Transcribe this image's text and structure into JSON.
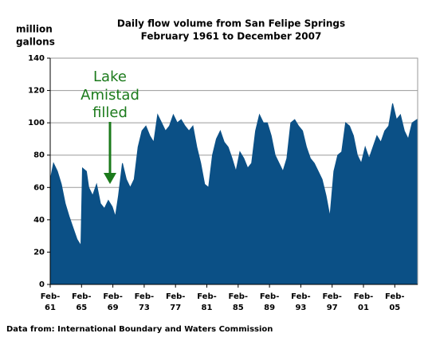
{
  "chart_data": {
    "type": "area",
    "title": "Daily flow volume from San Felipe Springs",
    "subtitle": "February 1961 to December 2007",
    "ylabel": [
      "million",
      "gallons"
    ],
    "annotation": [
      "Lake",
      "Amistad",
      "filled"
    ],
    "source": "Data from:  International Boundary and Waters Commission",
    "color": "#0b5086",
    "grid": true,
    "xlim": [
      1961.08,
      2008
    ],
    "ylim": [
      0,
      140
    ],
    "yticks": [
      0,
      20,
      40,
      60,
      80,
      100,
      120,
      140
    ],
    "xticks": [
      {
        "value": 1961.08,
        "label": "Feb-\n61"
      },
      {
        "value": 1965.08,
        "label": "Feb-\n65"
      },
      {
        "value": 1969.08,
        "label": "Feb-\n69"
      },
      {
        "value": 1973.08,
        "label": "Feb-\n73"
      },
      {
        "value": 1977.08,
        "label": "Feb-\n77"
      },
      {
        "value": 1981.08,
        "label": "Feb-\n81"
      },
      {
        "value": 1985.08,
        "label": "Feb-\n85"
      },
      {
        "value": 1989.08,
        "label": "Feb-\n89"
      },
      {
        "value": 1993.08,
        "label": "Feb-\n93"
      },
      {
        "value": 1997.08,
        "label": "Feb-\n97"
      },
      {
        "value": 2001.08,
        "label": "Feb-\n01"
      },
      {
        "value": 2005.08,
        "label": "Feb-\n05"
      }
    ],
    "x": [
      1961.1,
      1961.5,
      1962,
      1962.5,
      1963,
      1963.5,
      1964,
      1964.5,
      1965,
      1965.2,
      1965.7,
      1966,
      1966.5,
      1967,
      1967.5,
      1968,
      1968.5,
      1969,
      1969.4,
      1969.8,
      1970.3,
      1970.8,
      1971.3,
      1971.8,
      1972.3,
      1972.8,
      1973.3,
      1973.8,
      1974.3,
      1974.8,
      1975.3,
      1975.8,
      1976.3,
      1976.8,
      1977.3,
      1977.8,
      1978.3,
      1978.8,
      1979.3,
      1979.8,
      1980.3,
      1980.8,
      1981.3,
      1981.8,
      1982.3,
      1982.8,
      1983.3,
      1983.8,
      1984.3,
      1984.8,
      1985.3,
      1985.8,
      1986.3,
      1986.8,
      1987.3,
      1987.8,
      1988.3,
      1988.8,
      1989.3,
      1989.8,
      1990.3,
      1990.8,
      1991.3,
      1991.8,
      1992.3,
      1992.8,
      1993.3,
      1993.8,
      1994.3,
      1994.8,
      1995.3,
      1995.8,
      1996.3,
      1996.8,
      1997.3,
      1997.8,
      1998.3,
      1998.8,
      1999.3,
      1999.8,
      2000.3,
      2000.8,
      2001.3,
      2001.8,
      2002.3,
      2002.8,
      2003.3,
      2003.8,
      2004.3,
      2004.8,
      2005.3,
      2005.8,
      2006.3,
      2006.8,
      2007.3,
      2007.9
    ],
    "values": [
      65,
      75,
      70,
      62,
      50,
      42,
      35,
      28,
      24,
      72,
      70,
      60,
      55,
      62,
      50,
      47,
      52,
      48,
      42,
      55,
      75,
      65,
      60,
      65,
      85,
      95,
      98,
      92,
      88,
      105,
      100,
      95,
      98,
      105,
      100,
      102,
      98,
      95,
      98,
      85,
      75,
      62,
      60,
      80,
      90,
      95,
      88,
      85,
      78,
      70,
      82,
      78,
      72,
      75,
      95,
      105,
      100,
      100,
      92,
      80,
      75,
      70,
      78,
      100,
      102,
      98,
      95,
      85,
      78,
      75,
      70,
      65,
      55,
      42,
      70,
      80,
      82,
      100,
      98,
      92,
      80,
      75,
      85,
      78,
      85,
      92,
      88,
      95,
      98,
      112,
      102,
      105,
      95,
      90,
      100,
      102
    ]
  }
}
